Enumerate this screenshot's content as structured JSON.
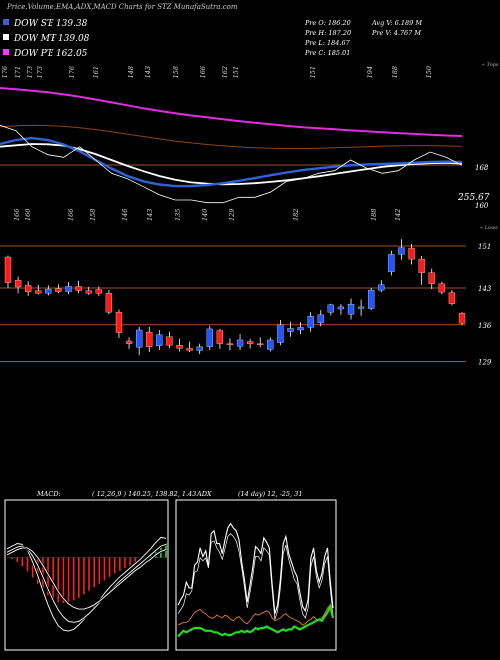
{
  "header": {
    "title": "Price,Volume,EMA,ADX,MACD Charts for STZ MunafaSutra.com",
    "stats": [
      {
        "label": "Pre",
        "name": "O",
        "value": "186.20"
      },
      {
        "label": "Pre",
        "name": "H",
        "value": "187.20"
      },
      {
        "label": "Pre",
        "name": "L",
        "value": "184.67"
      },
      {
        "label": "Pre",
        "name": "C",
        "value": "185.01"
      },
      {
        "label": "Avg",
        "name": "V",
        "value": "6.189 M"
      },
      {
        "label": "Pre",
        "name": "V",
        "value": "4.767 M"
      }
    ]
  },
  "legend": [
    {
      "label": "DOW ST",
      "value": "139.38",
      "color": "#3a5fd8"
    },
    {
      "label": "DOW MT",
      "value": "139.08",
      "color": "#ffffff"
    },
    {
      "label": "DOW PT",
      "value": "162.05",
      "color": "#ff33ff"
    }
  ],
  "colors": {
    "background": "#000000",
    "up": "#2255ff",
    "down": "#ff1a1a",
    "hline": "#a0522d",
    "ema_st": "#2e62d9",
    "ema_mt": "#ffffff",
    "ema_pt": "#e02ee0",
    "ema_lt": "#8b4513",
    "macd_hist": "#ff2020",
    "macd_hist_pos": "#33dd33",
    "adx_green": "#22dd22",
    "adx_orange": "#e08020"
  },
  "chart_data": [
    {
      "type": "line",
      "name": "ema",
      "labels": {
        "top_tag": "« Tops",
        "right_low": "255.67",
        "right_mid": "168",
        "right_low2": "160"
      },
      "top_tick_labels": [
        "176",
        "171",
        "173",
        "173",
        "176",
        "161",
        "148",
        "143",
        "158",
        "166",
        "162",
        "151",
        "151",
        "194",
        "188",
        "150"
      ],
      "series": [
        {
          "key": "pt",
          "values": [
            182,
            181.5,
            181,
            180.4,
            179.6,
            178.7,
            177.7,
            176.6,
            175.5,
            174.4,
            173.4,
            172.5,
            171.7,
            171,
            170.3,
            169.6,
            169,
            168.4,
            167.8,
            167.3,
            166.9,
            166.5,
            166.1,
            165.8,
            165.4,
            165.1,
            164.8,
            164.5,
            164.2,
            164
          ]
        },
        {
          "key": "lt",
          "values": [
            167.5,
            167.8,
            168,
            167.9,
            167.6,
            167.1,
            166.4,
            165.6,
            164.7,
            163.8,
            162.9,
            162.1,
            161.4,
            160.8,
            160.3,
            159.9,
            159.6,
            159.4,
            159.3,
            159.3,
            159.4,
            159.6,
            159.8,
            160,
            160.2,
            160.3,
            160.4,
            160.4,
            160.3,
            160.1
          ]
        },
        {
          "key": "mt",
          "values": [
            160,
            160.5,
            161,
            160.9,
            160.4,
            159,
            157.2,
            155,
            152.8,
            150.8,
            149,
            147.6,
            146.6,
            146.1,
            145.9,
            146,
            146.3,
            146.8,
            147.4,
            148.1,
            148.9,
            149.8,
            150.7,
            151.6,
            152.4,
            153,
            153.5,
            153.8,
            153.9,
            153.7
          ]
        },
        {
          "key": "st",
          "values": [
            161,
            162.5,
            163.2,
            162.5,
            160.8,
            158.2,
            155,
            151.8,
            149,
            147,
            145.8,
            145.2,
            145.2,
            145.6,
            146.3,
            147.2,
            148.2,
            149.3,
            150.3,
            151.2,
            151.9,
            152.5,
            153,
            153.3,
            153.5,
            153.7,
            154,
            154.3,
            154.4,
            154.2
          ]
        },
        {
          "key": "price",
          "values": [
            168,
            166,
            160,
            157,
            156,
            160,
            155,
            150,
            148,
            145,
            142,
            140,
            140,
            139,
            139,
            141,
            141,
            143,
            147,
            148,
            150,
            151,
            155,
            152,
            150,
            151,
            155,
            158,
            156,
            153
          ]
        }
      ],
      "ylim": [
        140,
        185
      ]
    },
    {
      "type": "candlestick",
      "name": "price",
      "labels": {
        "tag": "« Lows"
      },
      "bottom_tick_labels": [
        "166",
        "160",
        "166",
        "158",
        "146",
        "143",
        "135",
        "140",
        "129",
        "182",
        "188",
        "142"
      ],
      "right_axis": [
        "151",
        "143",
        "136",
        "129"
      ],
      "candles": [
        {
          "o": 148.9,
          "h": 149.2,
          "l": 143.0,
          "c": 144.0,
          "dir": "down"
        },
        {
          "o": 144.5,
          "h": 145.2,
          "l": 142.0,
          "c": 143.2,
          "dir": "down"
        },
        {
          "o": 143.5,
          "h": 144.3,
          "l": 141.5,
          "c": 142.3,
          "dir": "down"
        },
        {
          "o": 142.5,
          "h": 143.6,
          "l": 141.8,
          "c": 142.0,
          "dir": "down"
        },
        {
          "o": 142.0,
          "h": 143.5,
          "l": 141.6,
          "c": 142.8,
          "dir": "up"
        },
        {
          "o": 142.9,
          "h": 143.7,
          "l": 142.0,
          "c": 142.3,
          "dir": "down"
        },
        {
          "o": 142.3,
          "h": 144.1,
          "l": 141.8,
          "c": 143.3,
          "dir": "up"
        },
        {
          "o": 143.3,
          "h": 144.4,
          "l": 142.0,
          "c": 142.5,
          "dir": "down"
        },
        {
          "o": 142.5,
          "h": 143.2,
          "l": 141.7,
          "c": 142.0,
          "dir": "down"
        },
        {
          "o": 142.7,
          "h": 143.3,
          "l": 141.5,
          "c": 142.0,
          "dir": "down"
        },
        {
          "o": 142.0,
          "h": 142.6,
          "l": 138.0,
          "c": 138.4,
          "dir": "down"
        },
        {
          "o": 138.4,
          "h": 138.9,
          "l": 133.5,
          "c": 134.5,
          "dir": "down"
        },
        {
          "o": 132.9,
          "h": 133.6,
          "l": 131.4,
          "c": 132.4,
          "dir": "down"
        },
        {
          "o": 131.7,
          "h": 135.6,
          "l": 130.2,
          "c": 135.0,
          "dir": "up"
        },
        {
          "o": 134.6,
          "h": 135.6,
          "l": 130.8,
          "c": 131.8,
          "dir": "down"
        },
        {
          "o": 132.0,
          "h": 135.0,
          "l": 131.2,
          "c": 134.1,
          "dir": "up"
        },
        {
          "o": 133.7,
          "h": 134.7,
          "l": 131.6,
          "c": 132.1,
          "dir": "down"
        },
        {
          "o": 132.1,
          "h": 133.3,
          "l": 130.9,
          "c": 131.5,
          "dir": "down"
        },
        {
          "o": 131.5,
          "h": 132.8,
          "l": 130.8,
          "c": 131.1,
          "dir": "down"
        },
        {
          "o": 131.1,
          "h": 132.4,
          "l": 130.4,
          "c": 131.8,
          "dir": "up"
        },
        {
          "o": 131.8,
          "h": 135.8,
          "l": 131.2,
          "c": 135.2,
          "dir": "up"
        },
        {
          "o": 134.9,
          "h": 135.2,
          "l": 131.4,
          "c": 132.4,
          "dir": "down"
        },
        {
          "o": 132.4,
          "h": 133.4,
          "l": 131.1,
          "c": 132.2,
          "dir": "down"
        },
        {
          "o": 131.9,
          "h": 134.2,
          "l": 131.2,
          "c": 133.1,
          "dir": "up"
        },
        {
          "o": 132.8,
          "h": 133.3,
          "l": 131.5,
          "c": 132.4,
          "dir": "down"
        },
        {
          "o": 132.4,
          "h": 133.6,
          "l": 131.7,
          "c": 132.4,
          "dir": "down"
        },
        {
          "o": 131.3,
          "h": 133.6,
          "l": 130.9,
          "c": 133.1,
          "dir": "up"
        },
        {
          "o": 132.6,
          "h": 136.9,
          "l": 132.1,
          "c": 136.0,
          "dir": "up"
        },
        {
          "o": 134.7,
          "h": 136.6,
          "l": 133.7,
          "c": 135.3,
          "dir": "up"
        },
        {
          "o": 135.0,
          "h": 136.5,
          "l": 134.2,
          "c": 135.5,
          "dir": "up"
        },
        {
          "o": 135.5,
          "h": 138.4,
          "l": 134.7,
          "c": 137.6,
          "dir": "up"
        },
        {
          "o": 136.4,
          "h": 138.8,
          "l": 135.7,
          "c": 137.9,
          "dir": "up"
        },
        {
          "o": 138.4,
          "h": 140.0,
          "l": 137.8,
          "c": 139.8,
          "dir": "up"
        },
        {
          "o": 139.0,
          "h": 139.9,
          "l": 137.9,
          "c": 139.4,
          "dir": "up"
        },
        {
          "o": 138.0,
          "h": 141.0,
          "l": 137.0,
          "c": 139.9,
          "dir": "up"
        },
        {
          "o": 139.1,
          "h": 140.8,
          "l": 137.7,
          "c": 139.4,
          "dir": "up"
        },
        {
          "o": 139.1,
          "h": 143.0,
          "l": 138.8,
          "c": 142.6,
          "dir": "up"
        },
        {
          "o": 142.6,
          "h": 144.5,
          "l": 142.2,
          "c": 143.6,
          "dir": "up"
        },
        {
          "o": 146.1,
          "h": 150.1,
          "l": 145.4,
          "c": 149.4,
          "dir": "up"
        },
        {
          "o": 149.4,
          "h": 152.3,
          "l": 148.4,
          "c": 150.7,
          "dir": "up"
        },
        {
          "o": 150.6,
          "h": 151.4,
          "l": 147.5,
          "c": 148.5,
          "dir": "down"
        },
        {
          "o": 148.5,
          "h": 149.1,
          "l": 143.6,
          "c": 145.9,
          "dir": "down"
        },
        {
          "o": 145.9,
          "h": 146.7,
          "l": 142.8,
          "c": 143.8,
          "dir": "down"
        },
        {
          "o": 143.8,
          "h": 144.2,
          "l": 141.8,
          "c": 142.2,
          "dir": "down"
        },
        {
          "o": 142.1,
          "h": 142.6,
          "l": 139.7,
          "c": 140.0,
          "dir": "down"
        },
        {
          "o": 138.2,
          "h": 138.4,
          "l": 136.0,
          "c": 136.3,
          "dir": "down"
        }
      ],
      "hlines": [
        151,
        143,
        136,
        129
      ],
      "ylim": [
        127,
        155
      ]
    },
    {
      "type": "bar",
      "name": "macd",
      "label": "MACD:",
      "params": "( 12,26,9 ) 140.25, 138.82, 1.43",
      "histogram": [
        0,
        -0.2,
        -0.5,
        -1,
        -1.6,
        -2.3,
        -3,
        -3.7,
        -4.3,
        -4.8,
        -5.1,
        -5.2,
        -5.1,
        -4.9,
        -4.6,
        -4.2,
        -3.8,
        -3.4,
        -3,
        -2.6,
        -2.2,
        -1.8,
        -1.5,
        -1.2,
        -0.9,
        -0.6,
        -0.3,
        0,
        0.4,
        0.9,
        1.4,
        1.6
      ],
      "lines": [
        [
          1,
          1.3,
          1.6,
          1.5,
          0.8,
          -0.5,
          -2.1,
          -3.8,
          -5.4,
          -6.8,
          -7.8,
          -8.3,
          -8.4,
          -8.2,
          -7.7,
          -7.1,
          -6.4,
          -5.6,
          -4.9,
          -4.1,
          -3.4,
          -2.8,
          -2.2,
          -1.7,
          -1.2,
          -0.7,
          -0.2,
          0.4,
          1,
          1.7,
          2.3,
          2.2
        ],
        [
          0.6,
          0.9,
          1.2,
          1.3,
          1,
          0.2,
          -0.9,
          -2.2,
          -3.6,
          -4.9,
          -6,
          -6.8,
          -7.3,
          -7.4,
          -7.3,
          -6.9,
          -6.4,
          -5.8,
          -5.2,
          -4.5,
          -3.9,
          -3.3,
          -2.7,
          -2.2,
          -1.7,
          -1.2,
          -0.7,
          -0.2,
          0.3,
          0.8,
          1.3,
          1.5
        ],
        [
          0.3,
          0.6,
          0.9,
          1.1,
          1.1,
          0.7,
          0,
          -0.9,
          -1.9,
          -2.9,
          -3.9,
          -4.7,
          -5.3,
          -5.7,
          -5.9,
          -5.9,
          -5.7,
          -5.4,
          -5,
          -4.5,
          -4,
          -3.5,
          -3,
          -2.5,
          -2,
          -1.5,
          -1.1,
          -0.6,
          -0.2,
          0.3,
          0.7,
          0.9
        ]
      ],
      "ylim": [
        -10,
        6
      ]
    },
    {
      "type": "line",
      "name": "adx",
      "label": "ADX",
      "params": "(14 day) 12, -25, 31",
      "series": [
        {
          "key": "adx",
          "values": [
            20,
            24,
            27,
            36,
            32,
            32,
            48,
            50,
            60,
            54,
            58,
            47,
            70,
            72,
            63,
            63,
            56,
            66,
            74,
            77,
            74,
            72,
            66,
            50,
            38,
            22,
            34,
            46,
            61,
            59,
            56,
            67,
            64,
            60,
            35,
            14,
            20,
            38,
            63,
            68,
            56,
            50,
            44,
            40,
            29,
            19,
            16,
            24,
            53,
            60,
            44,
            36,
            42,
            54,
            60,
            37,
            18
          ]
        },
        {
          "key": "adx2",
          "values": [
            14,
            17,
            20,
            28,
            27,
            30,
            43,
            44,
            53,
            51,
            53,
            46,
            64,
            65,
            60,
            57,
            52,
            60,
            68,
            70,
            68,
            65,
            58,
            46,
            33,
            18,
            29,
            40,
            54,
            54,
            51,
            60,
            58,
            55,
            31,
            10,
            16,
            32,
            56,
            62,
            52,
            45,
            38,
            35,
            24,
            14,
            11,
            18,
            47,
            54,
            40,
            32,
            37,
            49,
            54,
            32,
            13
          ]
        },
        {
          "key": "minus",
          "values": [
            6,
            7,
            8,
            8,
            9,
            12,
            15,
            16,
            17,
            15,
            14,
            12,
            11,
            11,
            13,
            12,
            11,
            13,
            12,
            10,
            9,
            11,
            12,
            10,
            8,
            7,
            9,
            12,
            14,
            13,
            14,
            15,
            16,
            15,
            11,
            9,
            10,
            11,
            13,
            14,
            12,
            11,
            10,
            9,
            8,
            6,
            7,
            9,
            10,
            12,
            10,
            10,
            11,
            14,
            18,
            20,
            16
          ]
        },
        {
          "key": "plus",
          "values": [
            -2,
            0,
            2,
            1,
            2,
            3,
            4,
            4,
            4,
            3,
            2,
            2,
            2,
            1,
            1,
            0,
            -1,
            0,
            -1,
            -1,
            0,
            1,
            1,
            2,
            1,
            2,
            1,
            2,
            4,
            3,
            4,
            4,
            5,
            4,
            3,
            2,
            1,
            2,
            3,
            2,
            3,
            3,
            5,
            4,
            3,
            4,
            5,
            6,
            7,
            8,
            9,
            10,
            9,
            12,
            15,
            19,
            11
          ]
        }
      ],
      "ylim": [
        -10,
        90
      ]
    }
  ]
}
